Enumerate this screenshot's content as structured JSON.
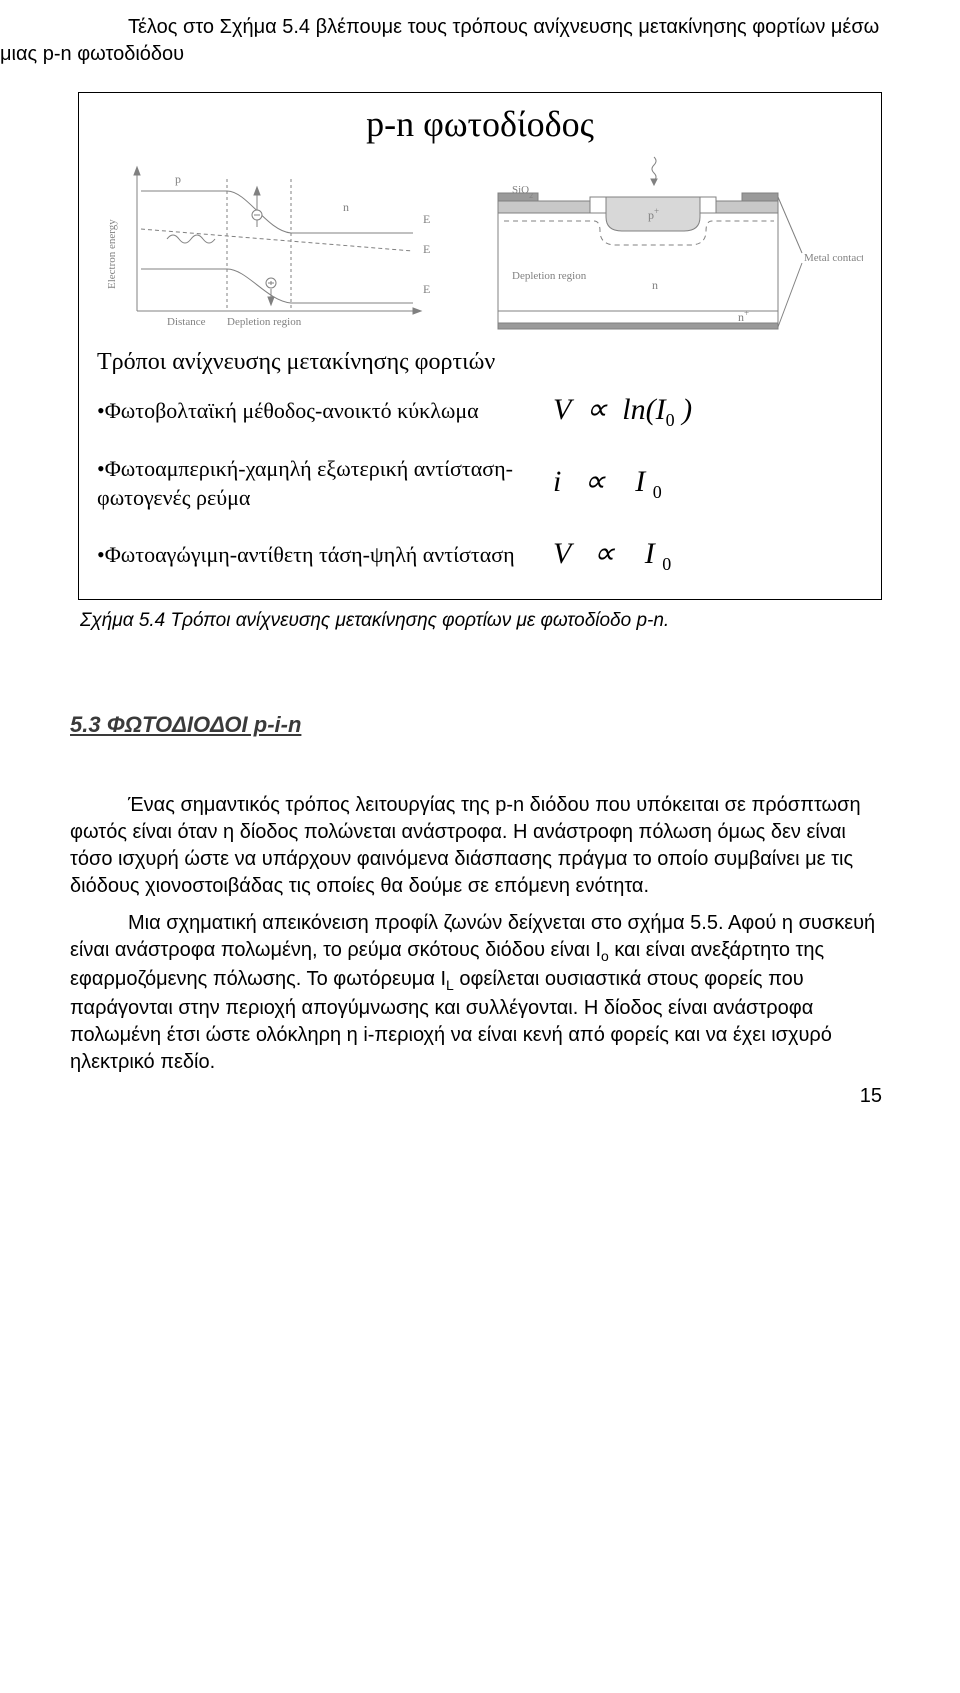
{
  "intro": "Τέλος στο Σχήμα 5.4 βλέπουμε τους τρόπους ανίχνευσης μετακίνησης φορτίων μέσω μιας p-n φωτοδιόδου",
  "figure": {
    "title": "p-n φωτοδίοδος",
    "diagram1": {
      "labels": {
        "p": "p",
        "n": "n",
        "y": "Electron energy",
        "x1": "Distance",
        "x2": "Depletion region",
        "ec": "E",
        "ef": "E",
        "ev": "E"
      },
      "stroke": "#808080"
    },
    "diagram2": {
      "labels": {
        "sio2": "SiO",
        "p_plus": "p",
        "dep": "Depletion region",
        "n": "n",
        "n_plus": "n",
        "metal": "Metal contacts"
      },
      "stroke": "#808080"
    },
    "subheading": "Τρόποι ανίχνευσης μετακίνησης φορτιών",
    "bullets": [
      {
        "text": "•Φωτοβολταϊκή μέθοδος-ανοικτό κύκλωμα",
        "eq_html": "<i>V</i> &nbsp;∝&nbsp; ln(<i>I</i><span class='eq-sub'>0</span> )"
      },
      {
        "text": "•Φωτοαμπερική-χαμηλή εξωτερική αντίσταση-φωτογενές ρεύμα",
        "eq_html": "<i>i</i> &nbsp;&nbsp;∝&nbsp;&nbsp;&nbsp; <i>I</i> <span class='eq-sub'>0</span>"
      },
      {
        "text": "•Φωτοαγώγιμη-αντίθετη τάση-ψηλή αντίσταση",
        "eq_html": "<i>V</i> &nbsp;&nbsp;∝&nbsp;&nbsp;&nbsp; <i>I</i> <span class='eq-sub'>0</span>"
      }
    ]
  },
  "caption": "Σχήμα 5.4 Τρόποι ανίχνευσης μετακίνησης φορτίων με φωτοδίοδο p-n.",
  "section_h": "5.3 ΦΩΤΟΔΙΟΔΟΙ p-i-n",
  "body_p1": "Ένας σημαντικός τρόπος λειτουργίας της p-n διόδου που υπόκειται σε πρόσπτωση φωτός είναι όταν η δίοδος πολώνεται ανάστροφα. Η ανάστροφη πόλωση όμως δεν είναι τόσο ισχυρή ώστε να υπάρχουν φαινόμενα διάσπασης πράγμα το οποίο συμβαίνει με τις διόδους χιονοστοιβάδας τις οποίες θα δούμε σε επόμενη ενότητα.",
  "body_p2a": "Μια σχηματική απεικόνειση προφίλ ζωνών δείχνεται στο σχήμα 5.5. Αφού η συσκευή είναι ανάστροφα πολωμένη, το ρεύμα σκότους διόδου είναι Ι",
  "body_p2_sub1": "ο",
  "body_p2b": " και είναι ανεξάρτητο της εφαρμοζόμενης πόλωσης. Το φωτόρευμα Ι",
  "body_p2_sub2": "L",
  "body_p2c": " οφείλεται ουσιαστικά στους φορείς που παράγονται στην περιοχή απογύμνωσης και συλλέγονται. Η δίοδος είναι ανάστροφα πολωμένη έτσι ώστε ολόκληρη η i-περιοχή να είναι κενή από φορείς και να έχει ισχυρό ηλεκτρικό πεδίο.",
  "pagenum": "15"
}
